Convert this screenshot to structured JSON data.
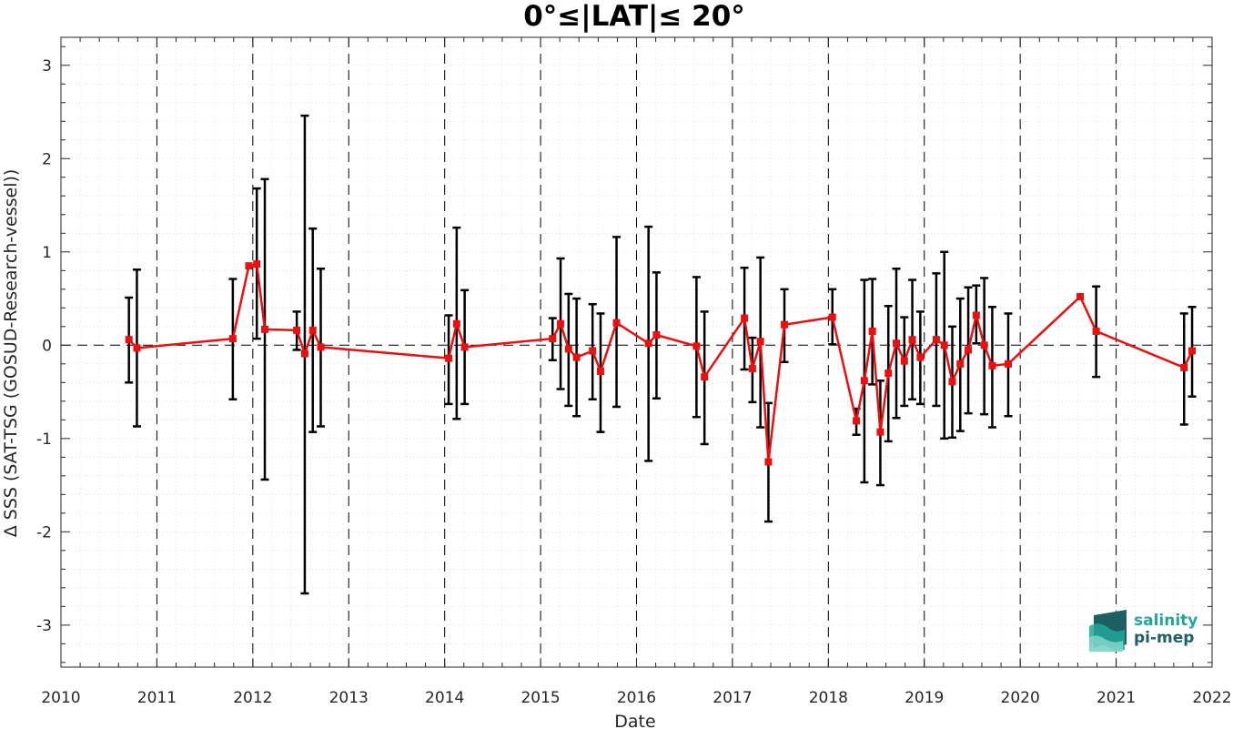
{
  "chart_data": {
    "type": "line",
    "title": "0°≤|LAT|≤ 20°",
    "xlabel": "Date",
    "ylabel": "Δ SSS (SAT-TSG (GOSUD-Research-vessel))",
    "xlim": [
      2010,
      2022
    ],
    "ylim": [
      -3.45,
      3.3
    ],
    "x_ticks": [
      "2010",
      "2011",
      "2012",
      "2013",
      "2014",
      "2015",
      "2016",
      "2017",
      "2018",
      "2019",
      "2020",
      "2021",
      "2022"
    ],
    "y_ticks": [
      "-3",
      "-2",
      "-1",
      "0",
      "1",
      "2",
      "3"
    ],
    "grid": true,
    "minor_grid": true,
    "vertical_reference_years": [
      2011,
      2012,
      2013,
      2014,
      2015,
      2016,
      2017,
      2018,
      2019,
      2020,
      2021
    ],
    "zero_line": true,
    "colors": {
      "series": "#e81010",
      "errorbar": "#000000",
      "grid": "#d9d9d9",
      "logo_teal": "#21a89a",
      "logo_dark": "#1d5f63"
    },
    "series": [
      {
        "marker": "square",
        "points": [
          {
            "x": "2010-09",
            "y": 0.06,
            "lo": -0.4,
            "hi": 0.51
          },
          {
            "x": "2010-10",
            "y": -0.03,
            "lo": -0.87,
            "hi": 0.81
          },
          {
            "x": "2011-10",
            "y": 0.07,
            "lo": -0.58,
            "hi": 0.71
          },
          {
            "x": "2011-12",
            "y": 0.85
          },
          {
            "x": "2012-01",
            "y": 0.87,
            "lo": 0.07,
            "hi": 1.68
          },
          {
            "x": "2012-02",
            "y": 0.17,
            "lo": -1.44,
            "hi": 1.78
          },
          {
            "x": "2012-06",
            "y": 0.16,
            "lo": -0.05,
            "hi": 0.36
          },
          {
            "x": "2012-07",
            "y": -0.09,
            "lo": -2.66,
            "hi": 2.46
          },
          {
            "x": "2012-08",
            "y": 0.16,
            "lo": -0.93,
            "hi": 1.25
          },
          {
            "x": "2012-09",
            "y": -0.02,
            "lo": -0.87,
            "hi": 0.82
          },
          {
            "x": "2014-01",
            "y": -0.14,
            "lo": -0.63,
            "hi": 0.32
          },
          {
            "x": "2014-02",
            "y": 0.23,
            "lo": -0.79,
            "hi": 1.26
          },
          {
            "x": "2014-03",
            "y": -0.02,
            "lo": -0.63,
            "hi": 0.59
          },
          {
            "x": "2015-02",
            "y": 0.07,
            "lo": -0.16,
            "hi": 0.29
          },
          {
            "x": "2015-03",
            "y": 0.23,
            "lo": -0.47,
            "hi": 0.93
          },
          {
            "x": "2015-04",
            "y": -0.04,
            "lo": -0.65,
            "hi": 0.55
          },
          {
            "x": "2015-05",
            "y": -0.13,
            "lo": -0.76,
            "hi": 0.5
          },
          {
            "x": "2015-07",
            "y": -0.06,
            "lo": -0.58,
            "hi": 0.44
          },
          {
            "x": "2015-08",
            "y": -0.28,
            "lo": -0.93,
            "hi": 0.34
          },
          {
            "x": "2015-10",
            "y": 0.24,
            "lo": -0.66,
            "hi": 1.16
          },
          {
            "x": "2016-02",
            "y": 0.02,
            "lo": -1.24,
            "hi": 1.27
          },
          {
            "x": "2016-03",
            "y": 0.11,
            "lo": -0.57,
            "hi": 0.78
          },
          {
            "x": "2016-08",
            "y": -0.01,
            "lo": -0.77,
            "hi": 0.73
          },
          {
            "x": "2016-09",
            "y": -0.34,
            "lo": -1.06,
            "hi": 0.36
          },
          {
            "x": "2017-02",
            "y": 0.29,
            "lo": -0.26,
            "hi": 0.83
          },
          {
            "x": "2017-03",
            "y": -0.25,
            "lo": -0.61,
            "hi": 0.08
          },
          {
            "x": "2017-04",
            "y": 0.04,
            "lo": -0.88,
            "hi": 0.94
          },
          {
            "x": "2017-05",
            "y": -1.25,
            "lo": -1.89,
            "hi": -0.62
          },
          {
            "x": "2017-07",
            "y": 0.22,
            "lo": -0.18,
            "hi": 0.6
          },
          {
            "x": "2018-01",
            "y": 0.3,
            "lo": 0.01,
            "hi": 0.6
          },
          {
            "x": "2018-04",
            "y": -0.81,
            "lo": -0.96,
            "hi": -0.68
          },
          {
            "x": "2018-05",
            "y": -0.38,
            "lo": -1.47,
            "hi": 0.7
          },
          {
            "x": "2018-06",
            "y": 0.15,
            "lo": -0.42,
            "hi": 0.71
          },
          {
            "x": "2018-07",
            "y": -0.93,
            "lo": -1.5,
            "hi": -0.38
          },
          {
            "x": "2018-08",
            "y": -0.3,
            "lo": -1.03,
            "hi": 0.42
          },
          {
            "x": "2018-09",
            "y": 0.02,
            "lo": -0.78,
            "hi": 0.82
          },
          {
            "x": "2018-10",
            "y": -0.17,
            "lo": -0.65,
            "hi": 0.3
          },
          {
            "x": "2018-11",
            "y": 0.06,
            "lo": -0.58,
            "hi": 0.7
          },
          {
            "x": "2018-12",
            "y": -0.13,
            "lo": -0.63,
            "hi": 0.36
          },
          {
            "x": "2019-02",
            "y": 0.06,
            "lo": -0.65,
            "hi": 0.77
          },
          {
            "x": "2019-03",
            "y": 0.0,
            "lo": -1.0,
            "hi": 1.0
          },
          {
            "x": "2019-04",
            "y": -0.39,
            "lo": -0.99,
            "hi": 0.2
          },
          {
            "x": "2019-05",
            "y": -0.2,
            "lo": -0.92,
            "hi": 0.5
          },
          {
            "x": "2019-06",
            "y": -0.05,
            "lo": -0.73,
            "hi": 0.62
          },
          {
            "x": "2019-07",
            "y": 0.32,
            "lo": 0.02,
            "hi": 0.64
          },
          {
            "x": "2019-08",
            "y": 0.0,
            "lo": -0.74,
            "hi": 0.72
          },
          {
            "x": "2019-09",
            "y": -0.22,
            "lo": -0.88,
            "hi": 0.41
          },
          {
            "x": "2019-11",
            "y": -0.2,
            "lo": -0.76,
            "hi": 0.34
          },
          {
            "x": "2020-08",
            "y": 0.52
          },
          {
            "x": "2020-10",
            "y": 0.15,
            "lo": -0.34,
            "hi": 0.63
          },
          {
            "x": "2021-09",
            "y": -0.24,
            "lo": -0.85,
            "hi": 0.34
          },
          {
            "x": "2021-10",
            "y": -0.06,
            "lo": -0.55,
            "hi": 0.41
          }
        ]
      }
    ]
  },
  "logo": {
    "line1": "salinity",
    "line2": "pi-mep",
    "icon": "salinity-wave-icon"
  }
}
